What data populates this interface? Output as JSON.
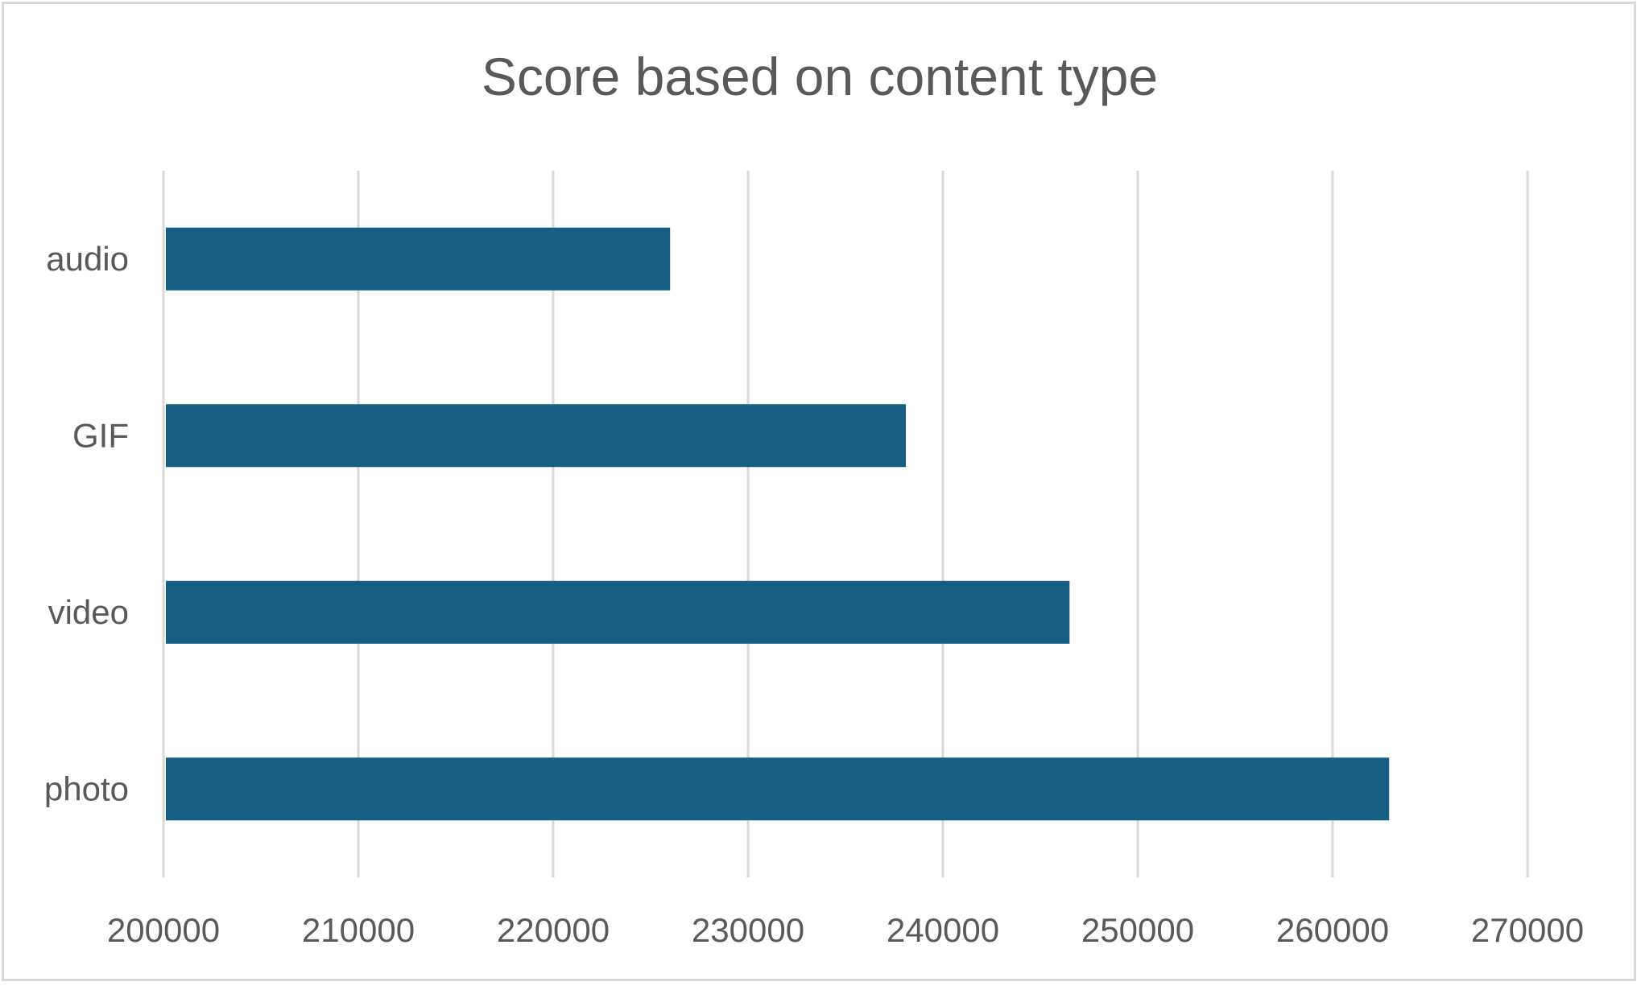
{
  "chart_data": {
    "type": "bar",
    "orientation": "horizontal",
    "title": "Score based on content type",
    "xlabel": "",
    "ylabel": "",
    "categories": [
      "audio",
      "GIF",
      "video",
      "photo"
    ],
    "values": [
      226000,
      238100,
      246500,
      262900
    ],
    "xlim": [
      200000,
      270000
    ],
    "x_ticks": [
      "200000",
      "210000",
      "220000",
      "230000",
      "240000",
      "250000",
      "260000",
      "270000"
    ],
    "grid": "vertical",
    "legend": "none",
    "colors": {
      "bar": "#175f82",
      "grid": "#d9d9d9",
      "text": "#595959",
      "border": "#d9d9d9"
    }
  }
}
